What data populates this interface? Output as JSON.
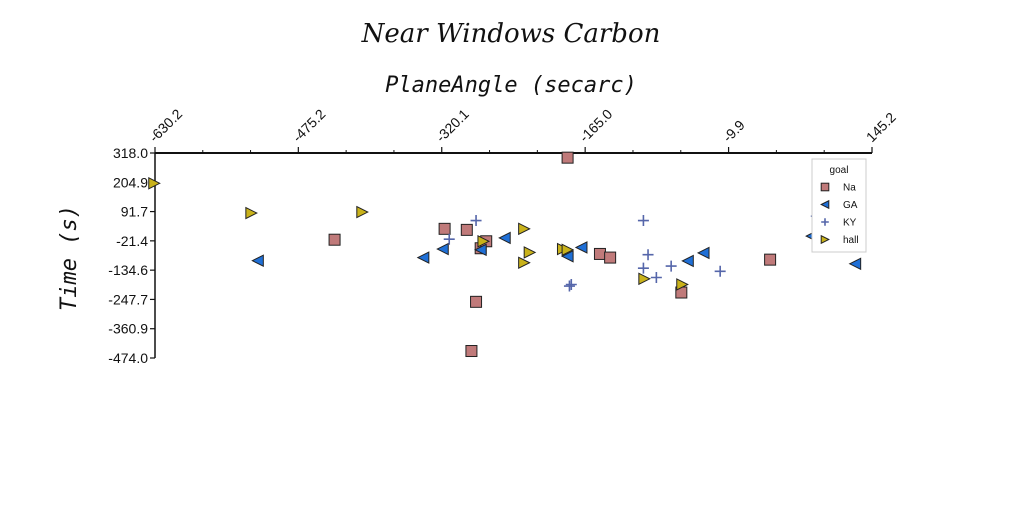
{
  "chart_data": {
    "type": "scatter",
    "title": "Near Windows Carbon",
    "xlabel": "PlaneAngle (secarc)",
    "ylabel": "Time  (s)",
    "xlim": [
      -630.2,
      145.2
    ],
    "ylim": [
      -474.0,
      318.0
    ],
    "x_ticks": [
      "-630.2",
      "-475.2",
      "-320.1",
      "-165.0",
      "-9.9",
      "145.2"
    ],
    "y_ticks": [
      "318.0",
      "204.9",
      "91.7",
      "-21.4",
      "-134.6",
      "-247.7",
      "-360.9",
      "-474.0"
    ],
    "x_axis_position": "top",
    "grid": false,
    "legend": {
      "title": "goal",
      "placement": "top-right"
    },
    "series": [
      {
        "name": "Na",
        "marker": "square",
        "color": "#c07a7a",
        "points": [
          [
            -436,
            -17
          ],
          [
            -317,
            25
          ],
          [
            -293,
            21
          ],
          [
            -278,
            -50
          ],
          [
            -272,
            -23
          ],
          [
            -184,
            300
          ],
          [
            -149,
            -72
          ],
          [
            -138,
            -86
          ],
          [
            -61,
            -221
          ],
          [
            35,
            -94
          ],
          [
            -283,
            -257
          ],
          [
            -288,
            -447
          ]
        ]
      },
      {
        "name": "GA",
        "marker": "triangle-left",
        "color": "#1f6fd6",
        "points": [
          [
            -519,
            -98
          ],
          [
            -340,
            -86
          ],
          [
            -319,
            -53
          ],
          [
            -278,
            -56
          ],
          [
            -252,
            -10
          ],
          [
            -184,
            -81
          ],
          [
            -169,
            -47
          ],
          [
            -54,
            -99
          ],
          [
            -37,
            -68
          ],
          [
            80,
            -3
          ],
          [
            127,
            -110
          ]
        ]
      },
      {
        "name": "KY",
        "marker": "plus",
        "color": "#5566aa",
        "points": [
          [
            -312,
            -15
          ],
          [
            -283,
            57
          ],
          [
            -182,
            -196
          ],
          [
            -180,
            -190
          ],
          [
            -102,
            57
          ],
          [
            -97,
            -75
          ],
          [
            -102,
            -127
          ],
          [
            -88,
            -163
          ],
          [
            -72,
            -119
          ],
          [
            -19,
            -139
          ],
          [
            85,
            74
          ]
        ]
      },
      {
        "name": "hall",
        "marker": "triangle-right",
        "color": "#c9b21a",
        "points": [
          [
            -631,
            201
          ],
          [
            -526,
            86
          ],
          [
            -406,
            90
          ],
          [
            -275,
            -23
          ],
          [
            -231,
            25
          ],
          [
            -231,
            -106
          ],
          [
            -225,
            -66
          ],
          [
            -189,
            -53
          ],
          [
            -184,
            -56
          ],
          [
            -101,
            -168
          ],
          [
            -60,
            -190
          ]
        ]
      }
    ]
  }
}
